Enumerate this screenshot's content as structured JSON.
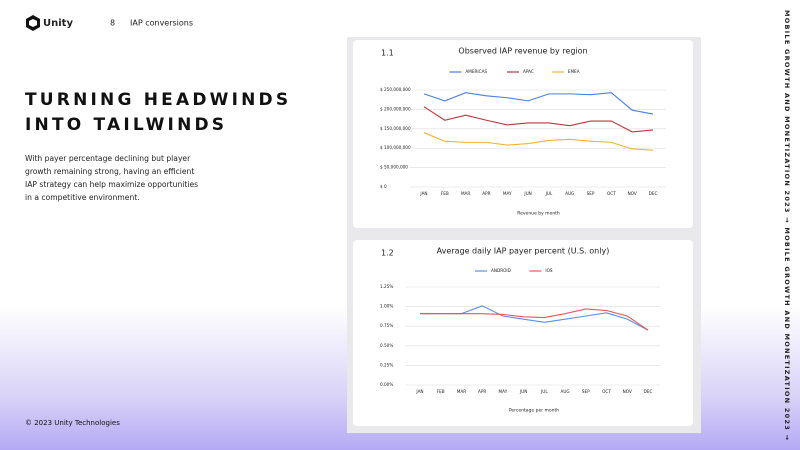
{
  "header": {
    "logo": "Unity",
    "page_number": "8",
    "section": "IAP conversions"
  },
  "title_lines": [
    "TURNING HEADWINDS",
    "INTO TAILWINDS"
  ],
  "body": "With payer percentage declining but player growth remaining strong, having an efficient IAP strategy can help maximize opportunities in a competitive environment.",
  "footer": "© 2023 Unity Technologies",
  "side_text": "MOBILE GROWTH AND MONETIZATION 2023 → MOBILE GROWTH AND MONETIZATION 2023 →",
  "chart_data": [
    {
      "type": "line",
      "number": "1.1",
      "title": "Observed IAP revenue by region",
      "xlabel": "Revenue by month",
      "categories": [
        "JAN",
        "FEB",
        "MAR",
        "APR",
        "MAY",
        "JUN",
        "JUL",
        "AUG",
        "SEP",
        "OCT",
        "NOV",
        "DEC"
      ],
      "series": [
        {
          "name": "AMERICAS",
          "color": "#4a7fe0",
          "values": [
            240000000,
            222000000,
            243000000,
            235000000,
            230000000,
            222000000,
            240000000,
            240000000,
            238000000,
            243000000,
            198000000,
            188000000
          ]
        },
        {
          "name": "APAC",
          "color": "#b8393c",
          "values": [
            207000000,
            172000000,
            185000000,
            172000000,
            160000000,
            165000000,
            165000000,
            158000000,
            170000000,
            170000000,
            142000000,
            147000000
          ]
        },
        {
          "name": "EMEA",
          "color": "#f2b233",
          "values": [
            140000000,
            118000000,
            115000000,
            115000000,
            108000000,
            112000000,
            120000000,
            123000000,
            118000000,
            115000000,
            98000000,
            95000000
          ]
        }
      ],
      "ylim": [
        0,
        250000000
      ],
      "yticks": [
        {
          "value": 0,
          "label": "$ 0"
        },
        {
          "value": 50000000,
          "label": "$ 50,000,000"
        },
        {
          "value": 100000000,
          "label": "$ 100,000,000"
        },
        {
          "value": 150000000,
          "label": "$ 150,000,000"
        },
        {
          "value": 200000000,
          "label": "$ 200,000,000"
        },
        {
          "value": 250000000,
          "label": "$ 250,000,000"
        }
      ],
      "grid": true,
      "legend": "top"
    },
    {
      "type": "line",
      "number": "1.2",
      "title": "Average daily IAP payer percent (U.S. only)",
      "xlabel": "Percentage per month",
      "categories": [
        "JAN",
        "FEB",
        "MAR",
        "APR",
        "MAY",
        "JUN",
        "JUL",
        "AUG",
        "SEP",
        "OCT",
        "NOV",
        "DEC"
      ],
      "series": [
        {
          "name": "ANDROID",
          "color": "#5b8ee6",
          "values": [
            0.91,
            0.91,
            0.91,
            1.01,
            0.88,
            0.84,
            0.8,
            0.84,
            0.88,
            0.92,
            0.84,
            0.7
          ]
        },
        {
          "name": "IOS",
          "color": "#e8585a",
          "values": [
            0.91,
            0.91,
            0.91,
            0.91,
            0.9,
            0.87,
            0.86,
            0.91,
            0.97,
            0.95,
            0.88,
            0.7
          ]
        }
      ],
      "ylim": [
        0,
        1.25
      ],
      "yticks": [
        {
          "value": 0,
          "label": "0.00%"
        },
        {
          "value": 0.25,
          "label": "0.25%"
        },
        {
          "value": 0.5,
          "label": "0.50%"
        },
        {
          "value": 0.75,
          "label": "0.75%"
        },
        {
          "value": 1,
          "label": "1.00%"
        },
        {
          "value": 1.25,
          "label": "1.25%"
        }
      ],
      "grid": true,
      "legend": "top"
    }
  ]
}
